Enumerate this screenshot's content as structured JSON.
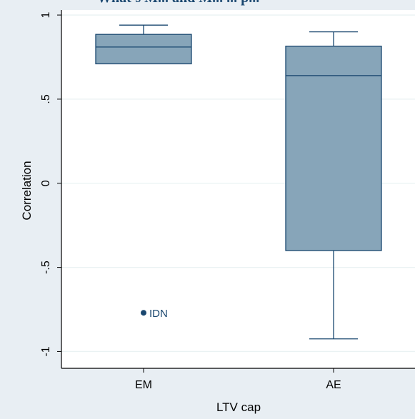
{
  "chart_data": {
    "type": "box",
    "title": "What's M... and M... ... p...",
    "xlabel": "LTV cap",
    "ylabel": "Correlation",
    "ylim": [
      -1.1,
      1.03
    ],
    "yticks": [
      -1,
      -0.5,
      0,
      0.5,
      1
    ],
    "ytick_labels": [
      "-1",
      "-.5",
      "0",
      ".5",
      "1"
    ],
    "grid": true,
    "categories": [
      "EM",
      "AE"
    ],
    "boxes": [
      {
        "category": "EM",
        "whisker_low": 0.71,
        "q1": 0.71,
        "median": 0.81,
        "q3": 0.885,
        "whisker_high": 0.94,
        "outliers": [
          {
            "value": -0.77,
            "label": "IDN"
          }
        ]
      },
      {
        "category": "AE",
        "whisker_low": -0.925,
        "q1": -0.4,
        "median": 0.64,
        "q3": 0.815,
        "whisker_high": 0.9,
        "outliers": []
      }
    ],
    "colors": {
      "box_fill": "#87a5b9",
      "box_stroke": "#1a476f",
      "grid": "#eaf2f3",
      "plot_bg": "#ffffff",
      "outer_bg": "#e8eef3",
      "title": "#1a476f",
      "title_accent": "#3a8fc8"
    }
  }
}
